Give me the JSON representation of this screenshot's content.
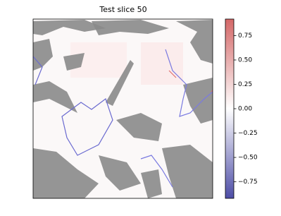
{
  "chart_data": {
    "type": "image",
    "title": "Test slice 50",
    "colorbar": {
      "clim": [
        -0.92,
        0.92
      ],
      "ticks": [
        {
          "value": 0.75,
          "label": "0.75"
        },
        {
          "value": 0.5,
          "label": "0.50"
        },
        {
          "value": 0.25,
          "label": "0.25"
        },
        {
          "value": 0,
          "label": "0.00"
        },
        {
          "value": -0.25,
          "label": "−0.25"
        },
        {
          "value": -0.5,
          "label": "−0.50"
        },
        {
          "value": -0.75,
          "label": "−0.75"
        }
      ],
      "colors": [
        "#4d4da6",
        "#ffffff",
        "#d46868"
      ]
    }
  }
}
